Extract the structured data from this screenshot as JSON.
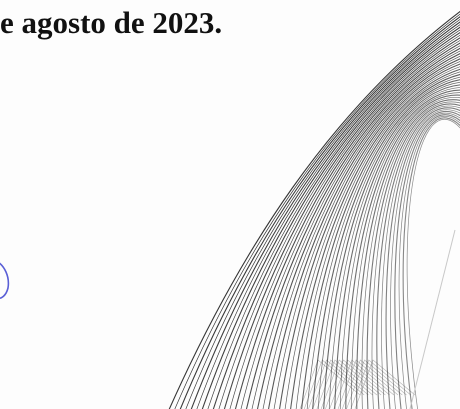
{
  "document": {
    "date_text": "e agosto de 2023."
  },
  "security_pattern": {
    "name": "guilloche-line-pattern",
    "ink_color": "#2a2a2a"
  },
  "signature_fragment": {
    "name": "blue-ink-stroke",
    "ink_color": "#5a5fd6"
  }
}
